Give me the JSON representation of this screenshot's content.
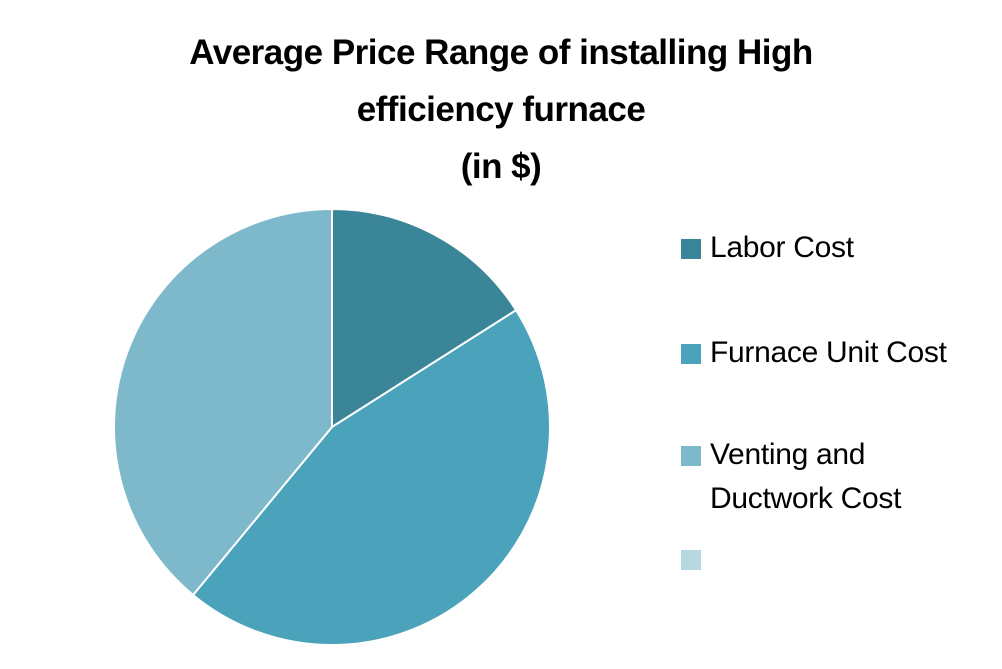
{
  "chart_data": {
    "type": "pie",
    "title_lines": [
      "Average Price Range of installing High",
      "efficiency furnace",
      "(in $)"
    ],
    "categories": [
      "Labor Cost",
      "Furnace Unit Cost",
      "Venting and Ductwork Cost",
      ""
    ],
    "values": [
      16,
      45,
      39,
      0
    ],
    "colors": [
      "#3a8698",
      "#4aa3bb",
      "#7db8cb",
      "#b7d8e3"
    ],
    "start_angle_deg": 0,
    "direction": "clockwise",
    "legend_position": "right",
    "legend": [
      {
        "lines": [
          "Labor Cost"
        ],
        "color": "#3a8698"
      },
      {
        "lines": [
          "Furnace Unit Cost"
        ],
        "color": "#4aa3bb"
      },
      {
        "lines": [
          "Venting and",
          "Ductwork Cost"
        ],
        "color": "#7db8cb"
      },
      {
        "lines": [],
        "color": "#b7d8e3"
      }
    ]
  }
}
